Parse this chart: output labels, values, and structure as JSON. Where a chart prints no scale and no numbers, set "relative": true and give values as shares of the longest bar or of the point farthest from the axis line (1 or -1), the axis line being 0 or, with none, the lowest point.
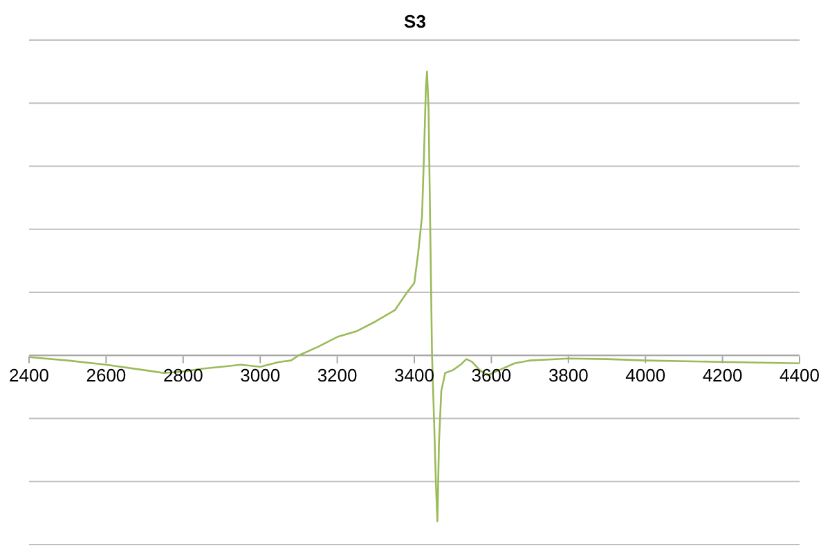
{
  "chart_data": {
    "type": "line",
    "title": "S3",
    "relative": true,
    "grid": "y",
    "marker": "none",
    "line_style": "solid",
    "legend": false,
    "xlim": [
      2400,
      4400
    ],
    "xticks": [
      2400,
      2600,
      2800,
      3000,
      3200,
      3400,
      3600,
      3800,
      4000,
      4200,
      4400
    ],
    "x": [
      2400,
      2500,
      2600,
      2700,
      2750,
      2800,
      2850,
      2900,
      2950,
      3000,
      3050,
      3080,
      3100,
      3150,
      3200,
      3250,
      3300,
      3350,
      3380,
      3400,
      3410,
      3420,
      3425,
      3430,
      3433,
      3437,
      3441,
      3446,
      3452,
      3456,
      3460,
      3464,
      3470,
      3480,
      3500,
      3520,
      3535,
      3550,
      3570,
      3590,
      3620,
      3660,
      3700,
      3800,
      3900,
      4000,
      4200,
      4400
    ],
    "series": [
      {
        "color": "#9bbb59",
        "values": [
          -0.006,
          -0.018,
          -0.033,
          -0.052,
          -0.062,
          -0.057,
          -0.047,
          -0.04,
          -0.033,
          -0.04,
          -0.023,
          -0.018,
          0.0,
          0.03,
          0.065,
          0.085,
          0.12,
          0.16,
          0.22,
          0.255,
          0.36,
          0.49,
          0.7,
          0.94,
          1,
          0.87,
          0.48,
          0,
          -0.26,
          -0.45,
          -0.584,
          -0.31,
          -0.126,
          -0.062,
          -0.052,
          -0.033,
          -0.013,
          -0.023,
          -0.052,
          -0.07,
          -0.052,
          -0.028,
          -0.018,
          -0.011,
          -0.013,
          -0.018,
          -0.023,
          -0.028
        ]
      }
    ]
  }
}
